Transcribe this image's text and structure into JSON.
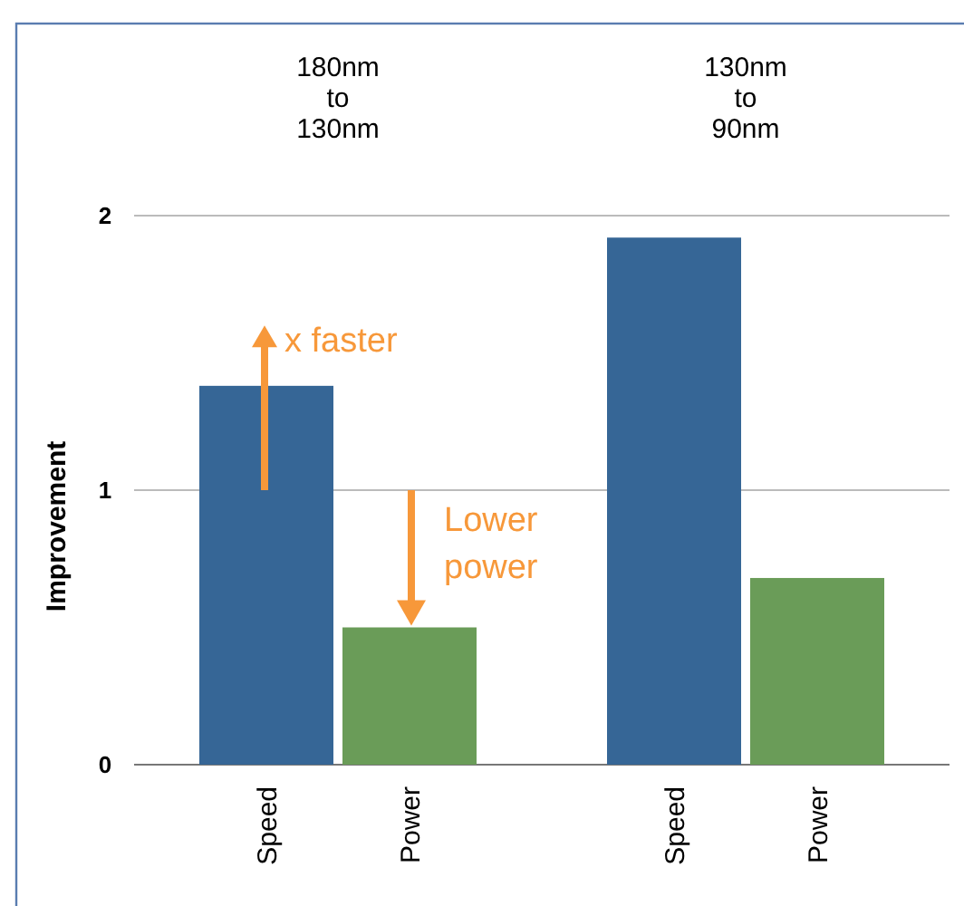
{
  "chart_data": {
    "type": "bar",
    "ylabel": "Improvement",
    "categories": [
      "Speed",
      "Power",
      "Speed",
      "Power"
    ],
    "values": [
      1.38,
      0.5,
      1.92,
      0.68
    ],
    "colors": [
      "#366696",
      "#6a9c58",
      "#366696",
      "#6a9c58"
    ],
    "ylim": [
      0,
      2
    ],
    "yticks": [
      0,
      1,
      2
    ],
    "grid": "y",
    "annotations": [
      "180nm\nto\n130nm",
      "130nm\nto\n90nm",
      "x faster",
      "Lower\npower"
    ]
  }
}
